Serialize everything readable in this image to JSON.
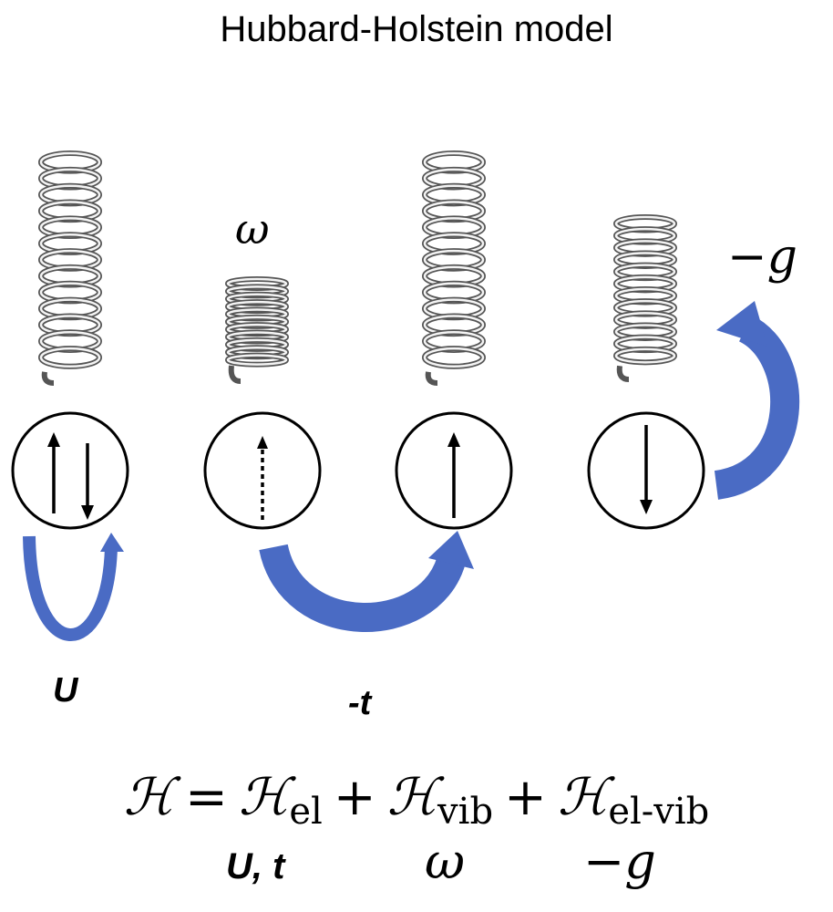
{
  "title": "Hubbard-Holstein model",
  "labels": {
    "U": "U",
    "t": "-t",
    "omega": "ω",
    "g": "−g"
  },
  "equation": {
    "H": "ℋ",
    "equals": "=",
    "plus": "+",
    "sub_el": "el",
    "sub_vib": "vib",
    "sub_elvib": "el-vib"
  },
  "parameters": {
    "el": "U, t",
    "vib": "ω",
    "elvib": "−g"
  },
  "colors": {
    "arrow_blue": "#4a6bc4",
    "spring_gray": "#7a7a7a"
  }
}
